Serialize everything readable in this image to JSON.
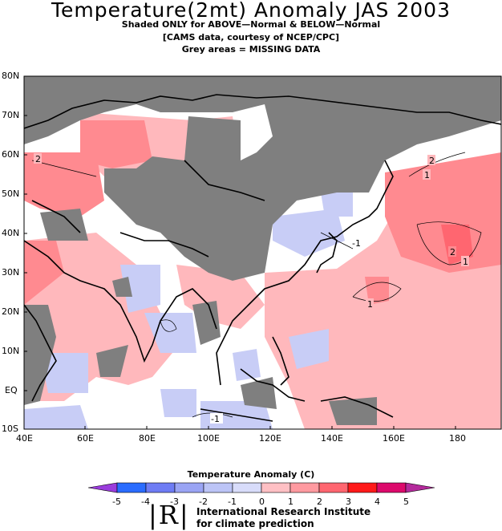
{
  "title": "Temperature(2mt) Anomaly JAS 2003",
  "subtitle_lines": [
    "Shaded ONLY for ABOVE—Normal & BELOW—Normal",
    "[CAMS data, courtesy of NCEP/CPC]",
    "Grey areas = MISSING DATA"
  ],
  "lat_labels": [
    "80N",
    "70N",
    "60N",
    "50N",
    "40N",
    "30N",
    "20N",
    "10N",
    "EQ",
    "10S"
  ],
  "lon_labels": [
    "40E",
    "60E",
    "80E",
    "100E",
    "120E",
    "140E",
    "160E",
    "180"
  ],
  "contour_labels": [
    "2",
    "2",
    "1",
    "2",
    "1",
    "1",
    "-1",
    "-1"
  ],
  "colorbar": {
    "title": "Temperature  Anomaly (C)",
    "tick_labels": [
      "-5",
      "-4",
      "-3",
      "-2",
      "-1",
      "0",
      "1",
      "2",
      "3",
      "4",
      "5"
    ],
    "colors": [
      "#9a3cdc",
      "#2a6cff",
      "#6e7cf4",
      "#9aa4f4",
      "#bcc4f6",
      "#d8dcfa",
      "#ffc0c4",
      "#ff9aa0",
      "#ff6670",
      "#ff1a1a",
      "#dc0a6c",
      "#b42a9c"
    ],
    "units": "C"
  },
  "legend_colors": {
    "missing": "#7f7f7f",
    "light_red": "#ffb8bc",
    "mid_red": "#ff8a90",
    "light_blue": "#c8cdf6"
  },
  "logo_text": "|R|",
  "org_lines": [
    "International Research Institute",
    "for climate prediction"
  ]
}
